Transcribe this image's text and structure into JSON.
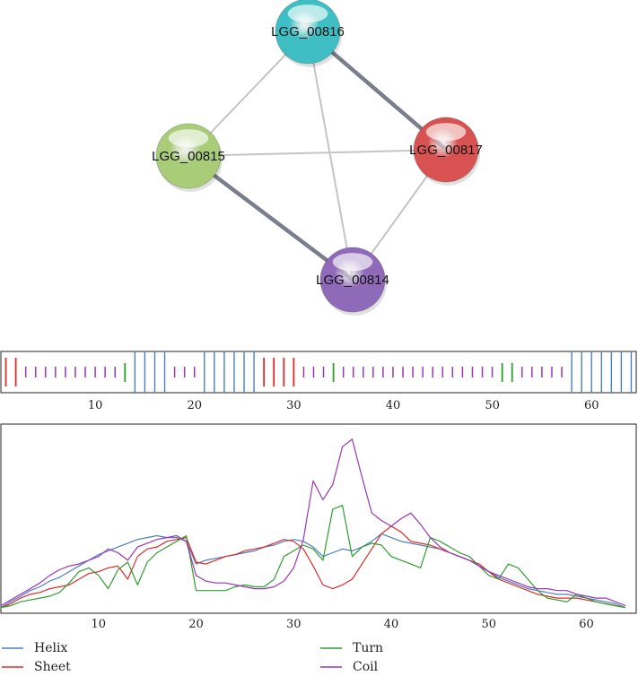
{
  "colors": {
    "helix": "#4a7fbf",
    "sheet": "#e02a2a",
    "turn": "#2e9e2e",
    "coil": "#9b35b5",
    "edge_strong": "#7a7d8c",
    "edge_weak": "#c4c4c4"
  },
  "network": {
    "nodes": [
      {
        "id": "LGG_00816",
        "label": "LGG_00816",
        "color": "#3fbfc4"
      },
      {
        "id": "LGG_00815",
        "label": "LGG_00815",
        "color": "#a8cc78"
      },
      {
        "id": "LGG_00817",
        "label": "LGG_00817",
        "color": "#d95252"
      },
      {
        "id": "LGG_00814",
        "label": "LGG_00814",
        "color": "#8f6ab8"
      }
    ],
    "edges": [
      {
        "source": "LGG_00816",
        "target": "LGG_00817",
        "strength": "strong"
      },
      {
        "source": "LGG_00815",
        "target": "LGG_00814",
        "strength": "strong"
      },
      {
        "source": "LGG_00816",
        "target": "LGG_00815",
        "strength": "weak"
      },
      {
        "source": "LGG_00815",
        "target": "LGG_00817",
        "strength": "weak"
      },
      {
        "source": "LGG_00816",
        "target": "LGG_00814",
        "strength": "weak"
      },
      {
        "source": "LGG_00817",
        "target": "LGG_00814",
        "strength": "weak"
      }
    ]
  },
  "chart_data": [
    {
      "type": "sequence_track",
      "x_range": [
        0.5,
        64.5
      ],
      "ticks": [
        10,
        20,
        30,
        40,
        50,
        60
      ],
      "assignments": [
        {
          "start": 1,
          "end": 2,
          "class": "sheet"
        },
        {
          "start": 3,
          "end": 12,
          "class": "coil"
        },
        {
          "start": 13,
          "end": 13,
          "class": "turn"
        },
        {
          "start": 14,
          "end": 17,
          "class": "helix"
        },
        {
          "start": 18,
          "end": 20,
          "class": "coil"
        },
        {
          "start": 21,
          "end": 26,
          "class": "helix"
        },
        {
          "start": 27,
          "end": 30,
          "class": "sheet"
        },
        {
          "start": 31,
          "end": 33,
          "class": "coil"
        },
        {
          "start": 34,
          "end": 34,
          "class": "turn"
        },
        {
          "start": 35,
          "end": 50,
          "class": "coil"
        },
        {
          "start": 51,
          "end": 52,
          "class": "turn"
        },
        {
          "start": 53,
          "end": 57,
          "class": "coil"
        },
        {
          "start": 58,
          "end": 64,
          "class": "helix"
        }
      ]
    },
    {
      "type": "line",
      "title": "",
      "xlabel": "",
      "ylabel": "",
      "xlim": [
        0,
        64
      ],
      "ylim": [
        0,
        1
      ],
      "ticks": [
        10,
        20,
        30,
        40,
        50,
        60
      ],
      "x": [
        0,
        1,
        2,
        3,
        4,
        5,
        6,
        7,
        8,
        9,
        10,
        11,
        12,
        13,
        14,
        15,
        16,
        17,
        18,
        19,
        20,
        21,
        22,
        23,
        24,
        25,
        26,
        27,
        28,
        29,
        30,
        31,
        32,
        33,
        34,
        35,
        36,
        37,
        38,
        39,
        40,
        41,
        42,
        43,
        44,
        45,
        46,
        47,
        48,
        49,
        50,
        51,
        52,
        53,
        54,
        55,
        56,
        57,
        58,
        59,
        60,
        61,
        62,
        63,
        64
      ],
      "series": [
        {
          "name": "Helix",
          "key": "helix",
          "values": [
            0.03,
            0.06,
            0.09,
            0.12,
            0.14,
            0.17,
            0.19,
            0.22,
            0.25,
            0.28,
            0.31,
            0.33,
            0.35,
            0.37,
            0.39,
            0.4,
            0.41,
            0.4,
            0.4,
            0.38,
            0.26,
            0.28,
            0.29,
            0.3,
            0.31,
            0.32,
            0.33,
            0.35,
            0.36,
            0.38,
            0.39,
            0.38,
            0.35,
            0.3,
            0.32,
            0.34,
            0.33,
            0.35,
            0.38,
            0.42,
            0.4,
            0.38,
            0.37,
            0.36,
            0.35,
            0.34,
            0.32,
            0.3,
            0.28,
            0.25,
            0.22,
            0.19,
            0.17,
            0.15,
            0.13,
            0.12,
            0.11,
            0.1,
            0.1,
            0.09,
            0.08,
            0.07,
            0.06,
            0.05,
            0.03
          ]
        },
        {
          "name": "Sheet",
          "key": "sheet",
          "values": [
            0.03,
            0.05,
            0.08,
            0.1,
            0.11,
            0.13,
            0.14,
            0.15,
            0.18,
            0.21,
            0.22,
            0.24,
            0.25,
            0.18,
            0.3,
            0.34,
            0.35,
            0.38,
            0.39,
            0.4,
            0.27,
            0.26,
            0.28,
            0.3,
            0.31,
            0.33,
            0.34,
            0.35,
            0.37,
            0.39,
            0.38,
            0.34,
            0.25,
            0.15,
            0.13,
            0.15,
            0.18,
            0.26,
            0.34,
            0.42,
            0.46,
            0.43,
            0.38,
            0.37,
            0.36,
            0.34,
            0.32,
            0.3,
            0.28,
            0.26,
            0.22,
            0.18,
            0.16,
            0.14,
            0.12,
            0.1,
            0.09,
            0.08,
            0.08,
            0.08,
            0.07,
            0.06,
            0.05,
            0.04,
            0.03
          ]
        },
        {
          "name": "Turn",
          "key": "turn",
          "values": [
            0.03,
            0.04,
            0.06,
            0.07,
            0.08,
            0.09,
            0.11,
            0.16,
            0.22,
            0.24,
            0.2,
            0.13,
            0.23,
            0.27,
            0.15,
            0.27,
            0.32,
            0.35,
            0.38,
            0.41,
            0.12,
            0.12,
            0.12,
            0.12,
            0.14,
            0.15,
            0.14,
            0.14,
            0.18,
            0.3,
            0.33,
            0.36,
            0.34,
            0.28,
            0.55,
            0.57,
            0.3,
            0.35,
            0.37,
            0.36,
            0.3,
            0.28,
            0.26,
            0.24,
            0.4,
            0.38,
            0.35,
            0.32,
            0.3,
            0.25,
            0.2,
            0.18,
            0.26,
            0.24,
            0.18,
            0.12,
            0.08,
            0.07,
            0.06,
            0.1,
            0.08,
            0.06,
            0.05,
            0.04,
            0.03
          ]
        },
        {
          "name": "Coil",
          "key": "coil",
          "values": [
            0.04,
            0.07,
            0.1,
            0.13,
            0.16,
            0.2,
            0.23,
            0.25,
            0.26,
            0.28,
            0.3,
            0.34,
            0.32,
            0.28,
            0.35,
            0.37,
            0.39,
            0.4,
            0.41,
            0.38,
            0.2,
            0.17,
            0.16,
            0.16,
            0.15,
            0.14,
            0.13,
            0.13,
            0.14,
            0.17,
            0.24,
            0.39,
            0.7,
            0.6,
            0.68,
            0.88,
            0.92,
            0.72,
            0.53,
            0.49,
            0.46,
            0.5,
            0.53,
            0.47,
            0.4,
            0.35,
            0.32,
            0.3,
            0.28,
            0.25,
            0.22,
            0.2,
            0.18,
            0.16,
            0.14,
            0.13,
            0.13,
            0.12,
            0.12,
            0.1,
            0.09,
            0.08,
            0.08,
            0.06,
            0.04
          ]
        }
      ],
      "legend": [
        {
          "name": "Helix",
          "key": "helix"
        },
        {
          "name": "Turn",
          "key": "turn"
        },
        {
          "name": "Sheet",
          "key": "sheet"
        },
        {
          "name": "Coil",
          "key": "coil"
        }
      ],
      "legend_position": "bottom"
    }
  ]
}
